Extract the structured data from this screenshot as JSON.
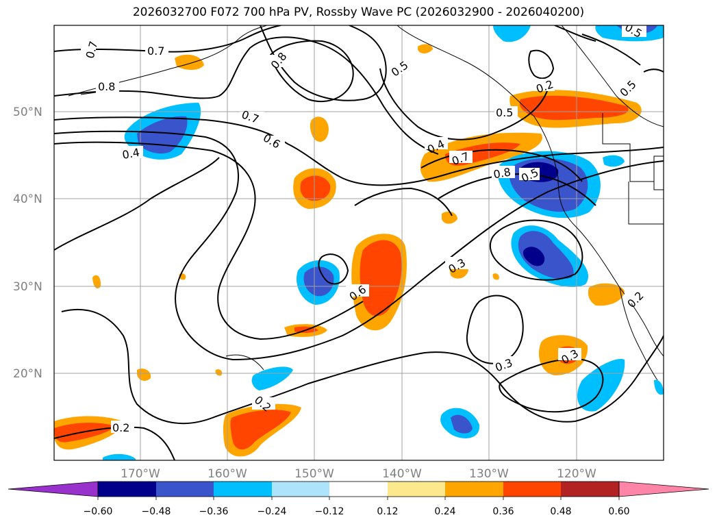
{
  "title": "2026032700 F072 700 hPa PV, Rossby Wave PC (2026032900 - 2026040200)",
  "lat_labels": [
    "50°N",
    "40°N",
    "30°N",
    "20°N"
  ],
  "lon_labels": [
    "170°W",
    "160°W",
    "150°W",
    "140°W",
    "130°W",
    "120°W"
  ],
  "colorbar": {
    "ticks": [
      "−0.60",
      "−0.48",
      "−0.36",
      "−0.24",
      "−0.12",
      "0.12",
      "0.24",
      "0.36",
      "0.48",
      "0.60"
    ],
    "colors": [
      "#9932cc",
      "#00008b",
      "#3a55cc",
      "#00bfff",
      "#aee4fb",
      "#ffffff",
      "#fde98d",
      "#ffa500",
      "#ff4500",
      "#b22222",
      "#ff85a8"
    ]
  },
  "contour_labels": [
    "0.7",
    "0.7",
    "0.8",
    "0.8",
    "0.5",
    "0.2",
    "0.5",
    "0.5",
    "0.5",
    "0.7",
    "0.6",
    "0.4",
    "0.4",
    "0.7",
    "0.8",
    "0.5",
    "0.3",
    "0.6",
    "0.3",
    "0.3",
    "0.2",
    "0.2",
    "0.2"
  ]
}
